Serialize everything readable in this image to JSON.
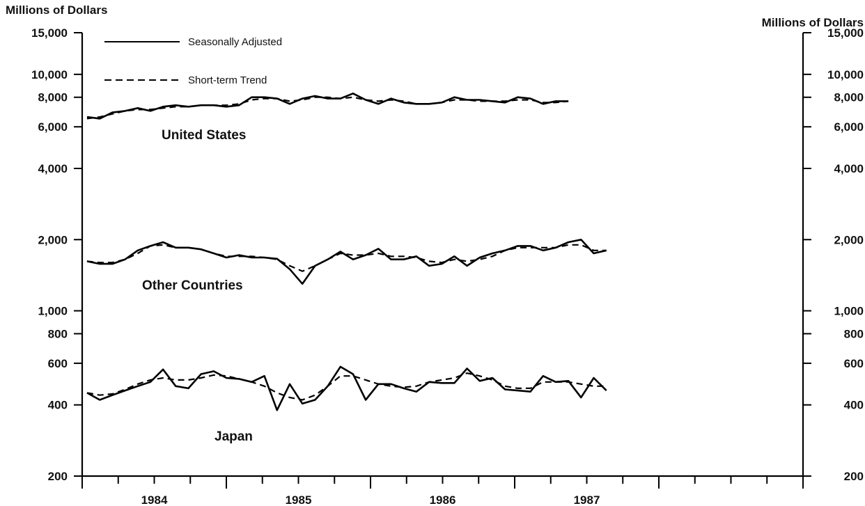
{
  "chart_data": {
    "type": "line",
    "y_scale": "log",
    "ylim": [
      200,
      15000
    ],
    "y_ticks": [
      200,
      400,
      600,
      800,
      1000,
      2000,
      4000,
      6000,
      8000,
      10000,
      15000
    ],
    "y_tick_labels": [
      "200",
      "400",
      "600",
      "800",
      "1,000",
      "2,000",
      "4,000",
      "6,000",
      "8,000",
      "10,000",
      "15,000"
    ],
    "ylabel_left": "Millions of Dollars",
    "ylabel_right": "Millions of Dollars",
    "x_years": [
      "1984",
      "1985",
      "1986",
      "1987"
    ],
    "legend": [
      {
        "label": "Seasonally Adjusted",
        "style": "solid"
      },
      {
        "label": "Short-term Trend",
        "style": "dashed"
      }
    ],
    "months": [
      "1983-12",
      "1984-01",
      "1984-02",
      "1984-03",
      "1984-04",
      "1984-05",
      "1984-06",
      "1984-07",
      "1984-08",
      "1984-09",
      "1984-10",
      "1984-11",
      "1984-12",
      "1985-01",
      "1985-02",
      "1985-03",
      "1985-04",
      "1985-05",
      "1985-06",
      "1985-07",
      "1985-08",
      "1985-09",
      "1985-10",
      "1985-11",
      "1985-12",
      "1986-01",
      "1986-02",
      "1986-03",
      "1986-04",
      "1986-05",
      "1986-06",
      "1986-07",
      "1986-08",
      "1986-09",
      "1986-10",
      "1986-11",
      "1986-12",
      "1987-01",
      "1987-02",
      "1987-03",
      "1987-04",
      "1987-05",
      "1987-06",
      "1987-07",
      "1987-08",
      "1987-09",
      "1987-10",
      "1987-11",
      "1987-12"
    ],
    "series": [
      {
        "name": "United States",
        "adjusted": [
          6600,
          6500,
          6900,
          7000,
          7200,
          7000,
          7300,
          7400,
          7300,
          7400,
          7400,
          7300,
          7400,
          8000,
          8000,
          7900,
          7500,
          7900,
          8100,
          7900,
          7900,
          8300,
          7800,
          7500,
          7900,
          7600,
          7500,
          7500,
          7600,
          8000,
          7800,
          7800,
          7700,
          7600,
          8000,
          7900,
          7500,
          7700,
          7700
        ],
        "trend": [
          6500,
          6600,
          6800,
          7000,
          7100,
          7100,
          7200,
          7300,
          7300,
          7400,
          7400,
          7400,
          7500,
          7800,
          7900,
          7900,
          7700,
          7800,
          8000,
          8000,
          7900,
          8000,
          7800,
          7700,
          7800,
          7700,
          7500,
          7500,
          7600,
          7800,
          7800,
          7700,
          7700,
          7700,
          7800,
          7800,
          7600,
          7600,
          7700
        ]
      },
      {
        "name": "Other Countries",
        "adjusted": [
          1620,
          1580,
          1580,
          1650,
          1800,
          1880,
          1950,
          1850,
          1850,
          1820,
          1750,
          1680,
          1720,
          1680,
          1680,
          1660,
          1500,
          1300,
          1550,
          1650,
          1780,
          1650,
          1720,
          1830,
          1650,
          1650,
          1700,
          1550,
          1580,
          1700,
          1550,
          1680,
          1750,
          1800,
          1880,
          1880,
          1800,
          1850,
          1950,
          2000,
          1750,
          1800
        ],
        "trend": [
          1620,
          1600,
          1600,
          1650,
          1750,
          1880,
          1900,
          1850,
          1850,
          1820,
          1750,
          1700,
          1700,
          1700,
          1680,
          1650,
          1550,
          1470,
          1550,
          1650,
          1750,
          1720,
          1720,
          1750,
          1700,
          1700,
          1680,
          1620,
          1600,
          1650,
          1620,
          1650,
          1700,
          1800,
          1850,
          1850,
          1850,
          1850,
          1900,
          1900,
          1800,
          1800
        ]
      },
      {
        "name": "Japan",
        "adjusted": [
          450,
          420,
          440,
          460,
          480,
          500,
          565,
          480,
          470,
          540,
          555,
          520,
          515,
          500,
          530,
          380,
          490,
          405,
          420,
          480,
          580,
          540,
          420,
          490,
          490,
          470,
          455,
          500,
          495,
          495,
          570,
          505,
          520,
          465,
          460,
          455,
          530,
          500,
          505,
          430,
          520,
          460
        ],
        "trend": [
          450,
          440,
          445,
          465,
          490,
          510,
          520,
          510,
          510,
          520,
          535,
          530,
          515,
          500,
          480,
          450,
          430,
          420,
          440,
          480,
          530,
          530,
          510,
          490,
          480,
          475,
          480,
          500,
          510,
          520,
          545,
          530,
          510,
          480,
          470,
          470,
          500,
          500,
          500,
          490,
          480,
          480
        ]
      }
    ]
  }
}
